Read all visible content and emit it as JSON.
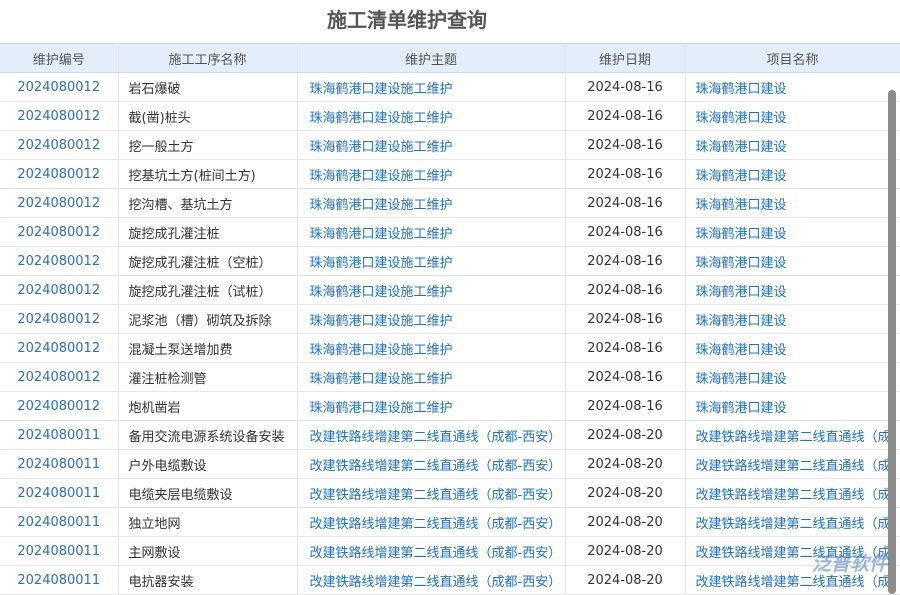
{
  "title": "施工清单维护查询",
  "table": {
    "header": [
      "维护编号",
      "施工工序名称",
      "维护主题",
      "维护日期",
      "项目名称"
    ],
    "rows": [
      [
        "2024080012",
        "岩石爆破",
        "珠海鹤港口建设施工维护",
        "2024-08-16",
        "珠海鹤港口建设"
      ],
      [
        "2024080012",
        "截(凿)桩头",
        "珠海鹤港口建设施工维护",
        "2024-08-16",
        "珠海鹤港口建设"
      ],
      [
        "2024080012",
        "挖一般土方",
        "珠海鹤港口建设施工维护",
        "2024-08-16",
        "珠海鹤港口建设"
      ],
      [
        "2024080012",
        "挖基坑土方(桩间土方)",
        "珠海鹤港口建设施工维护",
        "2024-08-16",
        "珠海鹤港口建设"
      ],
      [
        "2024080012",
        "挖沟槽、基坑土方",
        "珠海鹤港口建设施工维护",
        "2024-08-16",
        "珠海鹤港口建设"
      ],
      [
        "2024080012",
        "旋挖成孔灌注桩",
        "珠海鹤港口建设施工维护",
        "2024-08-16",
        "珠海鹤港口建设"
      ],
      [
        "2024080012",
        "旋挖成孔灌注桩（空桩）",
        "珠海鹤港口建设施工维护",
        "2024-08-16",
        "珠海鹤港口建设"
      ],
      [
        "2024080012",
        "旋挖成孔灌注桩（试桩）",
        "珠海鹤港口建设施工维护",
        "2024-08-16",
        "珠海鹤港口建设"
      ],
      [
        "2024080012",
        "泥浆池（槽）砌筑及拆除",
        "珠海鹤港口建设施工维护",
        "2024-08-16",
        "珠海鹤港口建设"
      ],
      [
        "2024080012",
        "混凝土泵送增加费",
        "珠海鹤港口建设施工维护",
        "2024-08-16",
        "珠海鹤港口建设"
      ],
      [
        "2024080012",
        "灌注桩检测管",
        "珠海鹤港口建设施工维护",
        "2024-08-16",
        "珠海鹤港口建设"
      ],
      [
        "2024080012",
        "炮机凿岩",
        "珠海鹤港口建设施工维护",
        "2024-08-16",
        "珠海鹤港口建设"
      ],
      [
        "2024080011",
        "备用交流电源系统设备安装",
        "改建铁路线增建第二线直通线（成都-西安）",
        "2024-08-20",
        "改建铁路线增建第二线直通线（成"
      ],
      [
        "2024080011",
        "户外电缆敷设",
        "改建铁路线增建第二线直通线（成都-西安）",
        "2024-08-20",
        "改建铁路线增建第二线直通线（成"
      ],
      [
        "2024080011",
        "电缆夹层电缆敷设",
        "改建铁路线增建第二线直通线（成都-西安）",
        "2024-08-20",
        "改建铁路线增建第二线直通线（成"
      ],
      [
        "2024080011",
        "独立地网",
        "改建铁路线增建第二线直通线（成都-西安）",
        "2024-08-20",
        "改建铁路线增建第二线直通线（成"
      ],
      [
        "2024080011",
        "主网敷设",
        "改建铁路线增建第二线直通线（成都-西安）",
        "2024-08-20",
        "改建铁路线增建第二线直通线（成"
      ],
      [
        "2024080011",
        "电抗器安装",
        "改建铁路线增建第二线直通线（成都-西安）",
        "2024-08-20",
        "改建铁路线增建第二线直通线（成"
      ]
    ]
  },
  "watermark": "泛普软件"
}
